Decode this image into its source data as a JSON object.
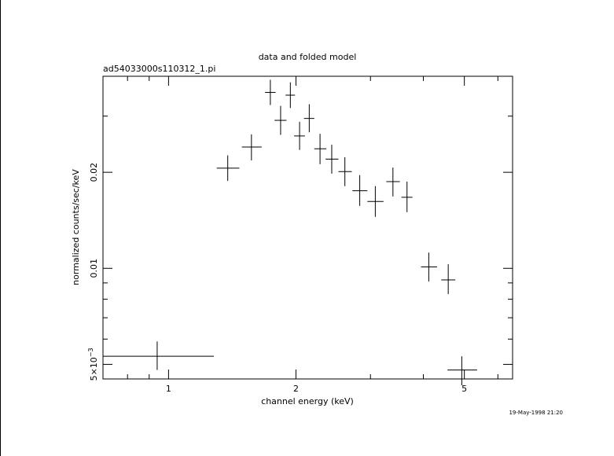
{
  "chart_data": {
    "type": "scatter",
    "title": "data and folded model",
    "subtitle": "ad54033000s110312_1.pi",
    "xlabel": "channel energy (keV)",
    "ylabel": "normalized counts/sec/keV",
    "timestamp": "19-May-1998 21:20",
    "x_scale": "log",
    "y_scale": "log",
    "xlim": [
      0.7,
      6.5
    ],
    "ylim": [
      0.0045,
      0.04
    ],
    "x_ticks": [
      {
        "value": 1,
        "label": "1"
      },
      {
        "value": 2,
        "label": "2"
      },
      {
        "value": 5,
        "label": "5"
      }
    ],
    "y_ticks": [
      {
        "value": 0.005,
        "label": "5×10",
        "exponent": "−3"
      },
      {
        "value": 0.01,
        "label": "0.01"
      },
      {
        "value": 0.02,
        "label": "0.02"
      }
    ],
    "grid": false,
    "points": [
      {
        "x": 0.94,
        "xerr": [
          0.7,
          1.28
        ],
        "y": 0.0053,
        "yerr": [
          0.0048,
          0.0059
        ]
      },
      {
        "x": 1.38,
        "xerr": [
          1.3,
          1.47
        ],
        "y": 0.0206,
        "yerr": [
          0.0188,
          0.0226
        ]
      },
      {
        "x": 1.57,
        "xerr": [
          1.49,
          1.66
        ],
        "y": 0.024,
        "yerr": [
          0.0218,
          0.0263
        ]
      },
      {
        "x": 1.74,
        "xerr": [
          1.69,
          1.79
        ],
        "y": 0.0356,
        "yerr": [
          0.0325,
          0.039
        ]
      },
      {
        "x": 1.84,
        "xerr": [
          1.78,
          1.9
        ],
        "y": 0.0291,
        "yerr": [
          0.0262,
          0.0323
        ]
      },
      {
        "x": 1.94,
        "xerr": [
          1.89,
          1.99
        ],
        "y": 0.0349,
        "yerr": [
          0.0318,
          0.0383
        ]
      },
      {
        "x": 2.04,
        "xerr": [
          1.98,
          2.1
        ],
        "y": 0.026,
        "yerr": [
          0.0235,
          0.0288
        ]
      },
      {
        "x": 2.15,
        "xerr": [
          2.09,
          2.21
        ],
        "y": 0.0295,
        "yerr": [
          0.0267,
          0.0327
        ]
      },
      {
        "x": 2.28,
        "xerr": [
          2.21,
          2.36
        ],
        "y": 0.0237,
        "yerr": [
          0.0212,
          0.0264
        ]
      },
      {
        "x": 2.43,
        "xerr": [
          2.35,
          2.52
        ],
        "y": 0.022,
        "yerr": [
          0.0198,
          0.0244
        ]
      },
      {
        "x": 2.61,
        "xerr": [
          2.52,
          2.71
        ],
        "y": 0.0201,
        "yerr": [
          0.0181,
          0.0223
        ]
      },
      {
        "x": 2.83,
        "xerr": [
          2.72,
          2.95
        ],
        "y": 0.0175,
        "yerr": [
          0.0157,
          0.0196
        ]
      },
      {
        "x": 3.08,
        "xerr": [
          2.95,
          3.22
        ],
        "y": 0.0162,
        "yerr": [
          0.0145,
          0.0181
        ]
      },
      {
        "x": 3.39,
        "xerr": [
          3.27,
          3.52
        ],
        "y": 0.0187,
        "yerr": [
          0.0168,
          0.0207
        ]
      },
      {
        "x": 3.66,
        "xerr": [
          3.55,
          3.77
        ],
        "y": 0.0167,
        "yerr": [
          0.015,
          0.0187
        ]
      },
      {
        "x": 4.12,
        "xerr": [
          3.95,
          4.31
        ],
        "y": 0.0101,
        "yerr": [
          0.0091,
          0.0112
        ]
      },
      {
        "x": 4.58,
        "xerr": [
          4.41,
          4.76
        ],
        "y": 0.0092,
        "yerr": [
          0.0083,
          0.0103
        ]
      },
      {
        "x": 4.93,
        "xerr": [
          4.56,
          5.36
        ],
        "y": 0.0048,
        "yerr": [
          0.0043,
          0.0053
        ]
      }
    ]
  }
}
